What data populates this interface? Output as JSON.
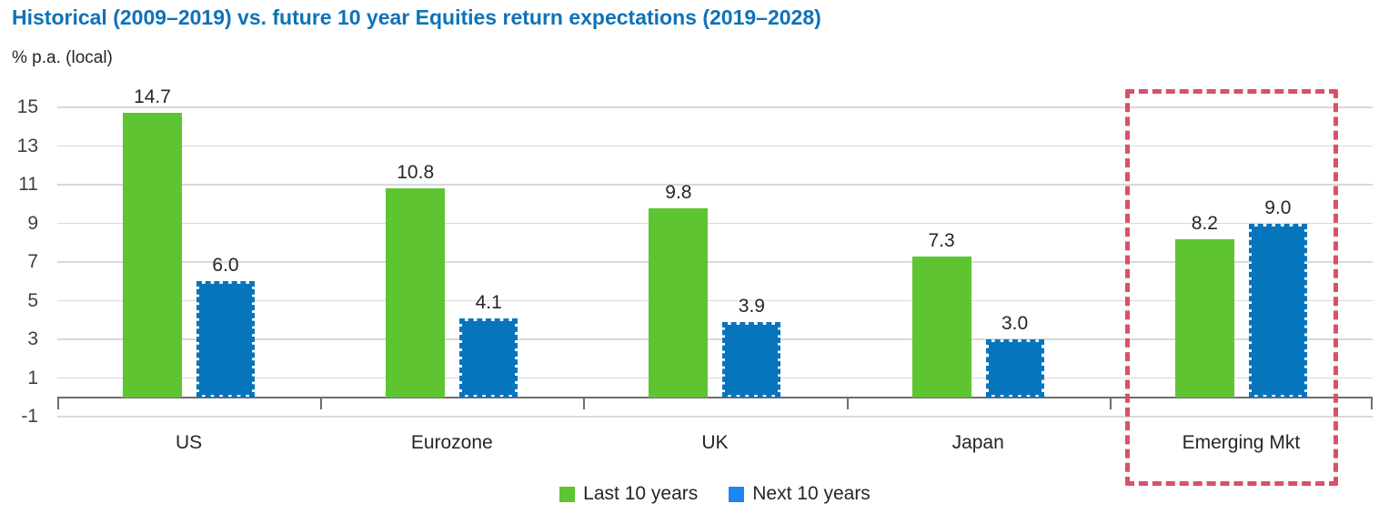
{
  "title": "Historical (2009–2019) vs. future 10 year Equities return expectations (2019–2028)",
  "subtitle": "% p.a. (local)",
  "colors": {
    "title_blue": "#0F72B8",
    "bar_green": "#5EC431",
    "bar_blue": "#0775BC",
    "legend_green": "#5EC431",
    "legend_blue": "#1C86F2",
    "gridline": "#D9D9D9",
    "axis": "#6E6E6E",
    "text": "#262626",
    "highlight_pink": "#D8506C"
  },
  "chart_data": {
    "type": "bar",
    "title": "Historical (2009–2019) vs. future 10 year Equities return expectations (2019–2028)",
    "ylabel": "% p.a. (local)",
    "categories": [
      "US",
      "Eurozone",
      "UK",
      "Japan",
      "Emerging Mkt"
    ],
    "series": [
      {
        "name": "Last 10 years",
        "values": [
          14.7,
          10.8,
          9.8,
          7.3,
          8.2
        ]
      },
      {
        "name": "Next 10 years",
        "values": [
          6.0,
          4.1,
          3.9,
          3.0,
          9.0
        ]
      }
    ],
    "y_ticks": [
      15,
      13,
      11,
      9,
      7,
      5,
      3,
      1,
      -1
    ],
    "ylim": [
      -1,
      15
    ],
    "grid": true,
    "legend_position": "bottom",
    "highlighted_category": "Emerging Mkt",
    "bar_style_notes": {
      "last_10_years": "solid green fill",
      "next_10_years": "blue fill with dashed outline"
    }
  }
}
